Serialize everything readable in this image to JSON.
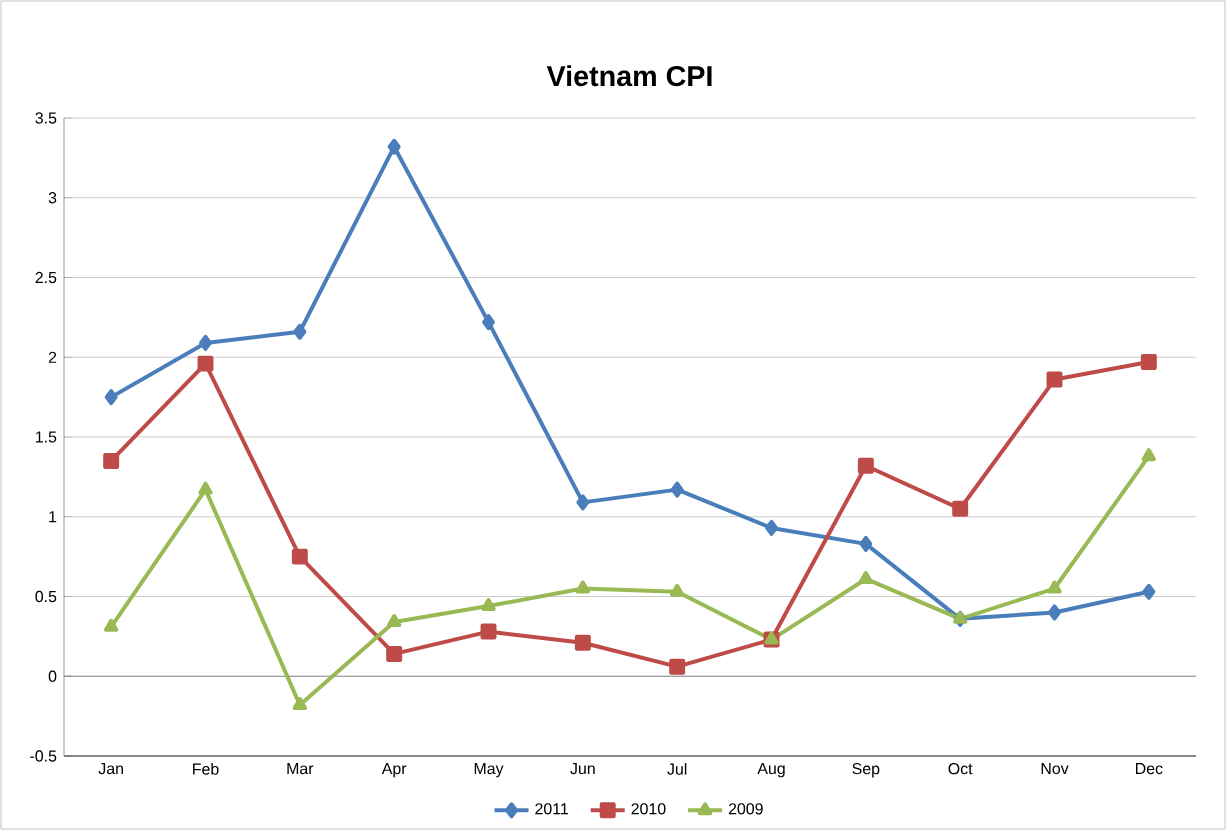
{
  "chart_data": {
    "type": "line",
    "title": "Vietnam CPI",
    "categories": [
      "Jan",
      "Feb",
      "Mar",
      "Apr",
      "May",
      "Jun",
      "Jul",
      "Aug",
      "Sep",
      "Oct",
      "Nov",
      "Dec"
    ],
    "series": [
      {
        "name": "2011",
        "color": "#4a7ebb",
        "marker": "diamond",
        "values": [
          1.75,
          2.09,
          2.16,
          3.32,
          2.22,
          1.09,
          1.17,
          0.93,
          0.83,
          0.36,
          0.4,
          0.53
        ]
      },
      {
        "name": "2010",
        "color": "#be4b48",
        "marker": "square",
        "values": [
          1.35,
          1.96,
          0.75,
          0.14,
          0.28,
          0.21,
          0.06,
          0.23,
          1.32,
          1.05,
          1.86,
          1.97
        ]
      },
      {
        "name": "2009",
        "color": "#98b954",
        "marker": "triangle",
        "values": [
          0.31,
          1.17,
          -0.18,
          0.34,
          0.44,
          0.55,
          0.53,
          0.23,
          0.61,
          0.36,
          0.55,
          1.38
        ]
      }
    ],
    "ylim": [
      -0.5,
      3.5
    ],
    "yticks": [
      -0.5,
      0,
      0.5,
      1,
      1.5,
      2,
      2.5,
      3,
      3.5
    ],
    "grid": "y",
    "legend": "bottom",
    "line_style": "solid"
  }
}
